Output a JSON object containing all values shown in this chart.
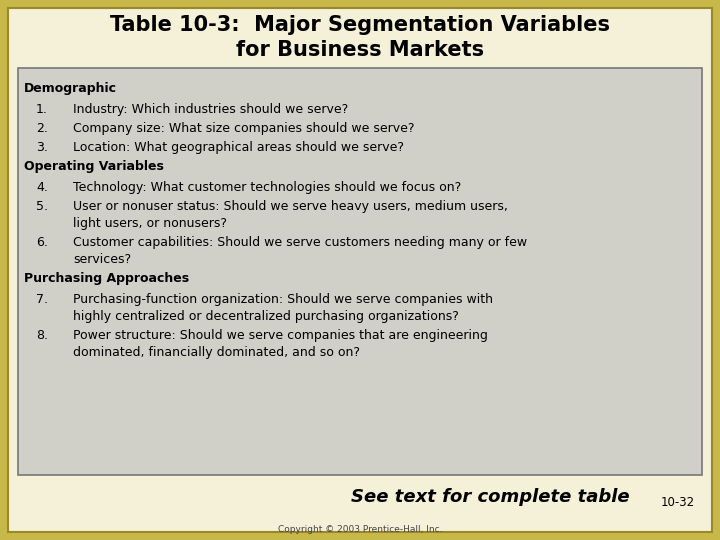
{
  "title_line1": "Table 10-3:  Major Segmentation Variables",
  "title_line2": "for Business Markets",
  "title_fontsize": 15,
  "title_color": "#000000",
  "background_color": "#f5f0d8",
  "box_bg_color": "#d0cfc8",
  "box_border_color": "#777777",
  "content": [
    {
      "type": "header",
      "text": "Demographic"
    },
    {
      "type": "item",
      "num": "1.",
      "text": "Industry: Which industries should we serve?"
    },
    {
      "type": "item",
      "num": "2.",
      "text": "Company size: What size companies should we serve?"
    },
    {
      "type": "item",
      "num": "3.",
      "text": "Location: What geographical areas should we serve?"
    },
    {
      "type": "header",
      "text": "Operating Variables"
    },
    {
      "type": "item",
      "num": "4.",
      "text": "Technology: What customer technologies should we focus on?"
    },
    {
      "type": "item_wrap",
      "num": "5.",
      "text1": "User or nonuser status: Should we serve heavy users, medium users,",
      "text2": "light users, or nonusers?"
    },
    {
      "type": "item_wrap",
      "num": "6.",
      "text1": "Customer capabilities: Should we serve customers needing many or few",
      "text2": "services?"
    },
    {
      "type": "header",
      "text": "Purchasing Approaches"
    },
    {
      "type": "item_wrap",
      "num": "7.",
      "text1": "Purchasing-function organization: Should we serve companies with",
      "text2": "highly centralized or decentralized purchasing organizations?"
    },
    {
      "type": "item_wrap",
      "num": "8.",
      "text1": "Power structure: Should we serve companies that are engineering",
      "text2": "dominated, financially dominated, and so on?"
    }
  ],
  "footer_italic": "See text for complete table",
  "footer_pagenum": "10-32",
  "copyright": "Copyright © 2003 Prentice-Hall, Inc.",
  "border_outer_color": "#c8b84a",
  "border_inner_color": "#9a8828"
}
